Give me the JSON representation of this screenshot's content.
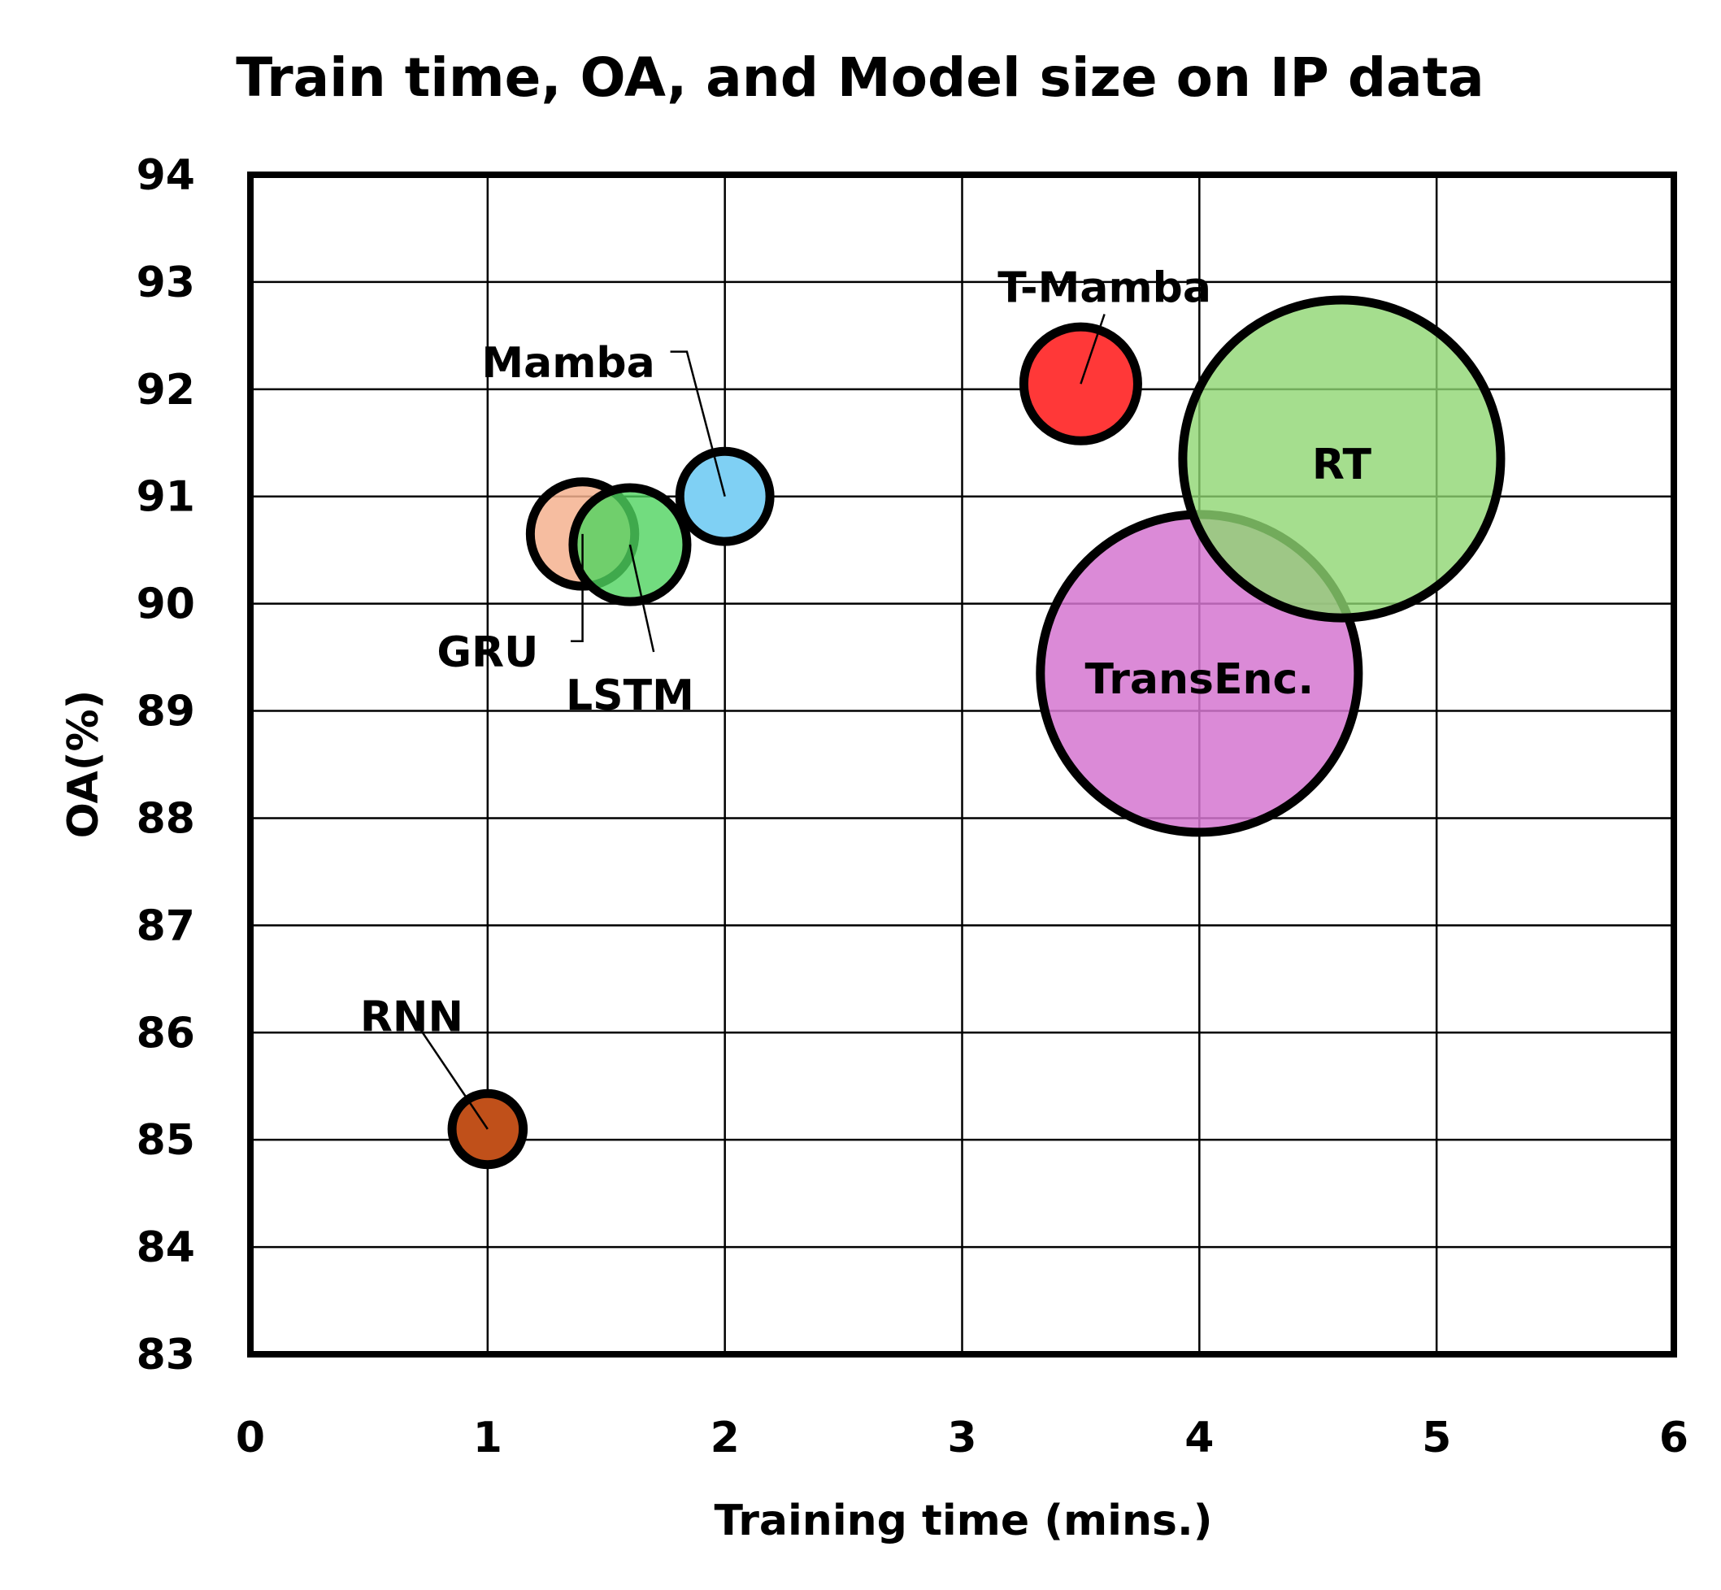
{
  "chart_data": {
    "type": "scatter",
    "title": "Train time, OA, and Model size on IP data",
    "xlabel": "Training time (mins.)",
    "ylabel": "OA(%)",
    "xlim": [
      0,
      6
    ],
    "ylim": [
      83,
      94
    ],
    "xticks": [
      "0",
      "1",
      "2",
      "3",
      "4",
      "5",
      "6"
    ],
    "yticks": [
      "83",
      "84",
      "85",
      "86",
      "87",
      "88",
      "89",
      "90",
      "91",
      "92",
      "93",
      "94"
    ],
    "grid": true,
    "bubble_size_encodes": "model size",
    "points": [
      {
        "label": "RNN",
        "x": 1.0,
        "y": 85.1,
        "r": 0.15,
        "color": "#c0501a",
        "opacity": 1.0,
        "label_x": 0.68,
        "label_y": 86.15,
        "leader": [
          [
            0.68,
            86.15
          ],
          [
            1.0,
            85.1
          ]
        ]
      },
      {
        "label": "GRU",
        "x": 1.4,
        "y": 90.65,
        "r": 0.22,
        "color": "#f4b18f",
        "opacity": 0.85,
        "label_x": 1.0,
        "label_y": 89.55,
        "leader": [
          [
            1.35,
            89.65
          ],
          [
            1.4,
            89.65
          ],
          [
            1.4,
            90.65
          ]
        ]
      },
      {
        "label": "LSTM",
        "x": 1.6,
        "y": 90.55,
        "r": 0.24,
        "color": "#4fd35f",
        "opacity": 0.8,
        "label_x": 1.6,
        "label_y": 89.15,
        "leader": [
          [
            1.7,
            89.55
          ],
          [
            1.6,
            90.55
          ]
        ]
      },
      {
        "label": "Mamba",
        "x": 2.0,
        "y": 91.0,
        "r": 0.19,
        "color": "#7fd0f4",
        "opacity": 1.0,
        "label_x": 1.34,
        "label_y": 92.25,
        "leader": [
          [
            1.77,
            92.35
          ],
          [
            1.84,
            92.35
          ],
          [
            2.0,
            91.0
          ]
        ]
      },
      {
        "label": "T-Mamba",
        "x": 3.5,
        "y": 92.05,
        "r": 0.24,
        "color": "#ff3838",
        "opacity": 1.0,
        "label_x": 3.6,
        "label_y": 92.95,
        "leader": [
          [
            3.6,
            92.7
          ],
          [
            3.5,
            92.05
          ]
        ]
      },
      {
        "label": "TransEnc.",
        "x": 4.0,
        "y": 89.35,
        "r": 0.67,
        "color": "#d575d0",
        "opacity": 0.85,
        "label_x": 4.0,
        "label_y": 89.3,
        "leader": null
      },
      {
        "label": "RT",
        "x": 4.6,
        "y": 91.35,
        "r": 0.67,
        "color": "#8fd672",
        "opacity": 0.8,
        "label_x": 4.6,
        "label_y": 91.3,
        "leader": null
      }
    ]
  }
}
